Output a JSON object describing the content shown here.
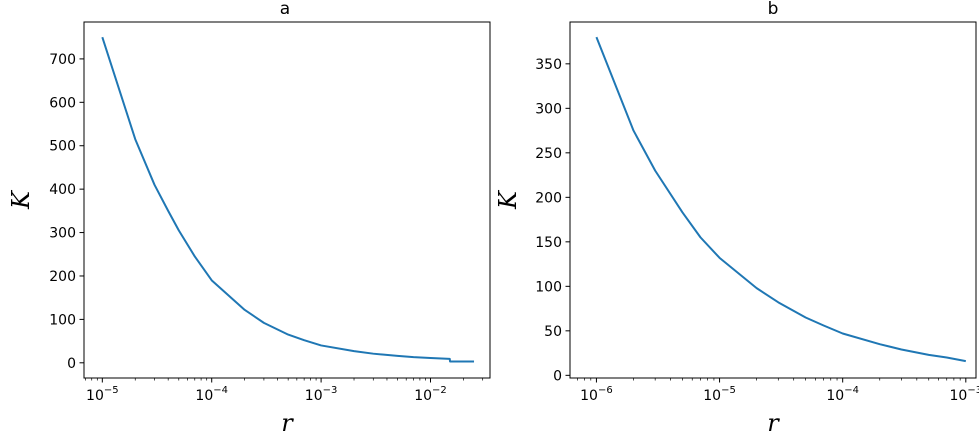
{
  "chart_data": [
    {
      "type": "line",
      "title": "a",
      "xlabel": "r",
      "ylabel": "K",
      "xscale": "log",
      "xlim": [
        6.8e-06,
        0.035
      ],
      "ylim": [
        -35,
        785
      ],
      "grid": false,
      "xticks": [
        {
          "value": 1e-05,
          "base": "10",
          "exp": "−5"
        },
        {
          "value": 0.0001,
          "base": "10",
          "exp": "−4"
        },
        {
          "value": 0.001,
          "base": "10",
          "exp": "−3"
        },
        {
          "value": 0.01,
          "base": "10",
          "exp": "−2"
        }
      ],
      "yticks": [
        0,
        100,
        200,
        300,
        400,
        500,
        600,
        700
      ],
      "series": [
        {
          "color": "#1f77b4",
          "x": [
            1e-05,
            2e-05,
            3e-05,
            4e-05,
            5e-05,
            7e-05,
            0.0001,
            0.0002,
            0.0003,
            0.0005,
            0.0007,
            0.001,
            0.002,
            0.003,
            0.005,
            0.007,
            0.01,
            0.015,
            0.0151,
            0.025
          ],
          "y": [
            750,
            515,
            410,
            350,
            305,
            245,
            190,
            122,
            92,
            65,
            52,
            40,
            27,
            21,
            16,
            13,
            11,
            9,
            3,
            3
          ]
        }
      ]
    },
    {
      "type": "line",
      "title": "b",
      "xlabel": "r",
      "ylabel": "K",
      "xscale": "log",
      "xlim": [
        6.1e-07,
        0.00121
      ],
      "ylim": [
        -3,
        397
      ],
      "grid": false,
      "xticks": [
        {
          "value": 1e-06,
          "base": "10",
          "exp": "−6"
        },
        {
          "value": 1e-05,
          "base": "10",
          "exp": "−5"
        },
        {
          "value": 0.0001,
          "base": "10",
          "exp": "−4"
        },
        {
          "value": 0.001,
          "base": "10",
          "exp": "−3"
        }
      ],
      "yticks": [
        0,
        50,
        100,
        150,
        200,
        250,
        300,
        350
      ],
      "series": [
        {
          "color": "#1f77b4",
          "x": [
            1e-06,
            2e-06,
            3e-06,
            5e-06,
            7e-06,
            1e-05,
            2e-05,
            3e-05,
            5e-05,
            7e-05,
            0.0001,
            0.0002,
            0.0003,
            0.0005,
            0.0007,
            0.001
          ],
          "y": [
            380,
            275,
            230,
            183,
            155,
            132,
            98,
            82,
            65,
            56,
            47,
            35,
            29,
            23,
            20,
            16
          ]
        }
      ]
    }
  ]
}
